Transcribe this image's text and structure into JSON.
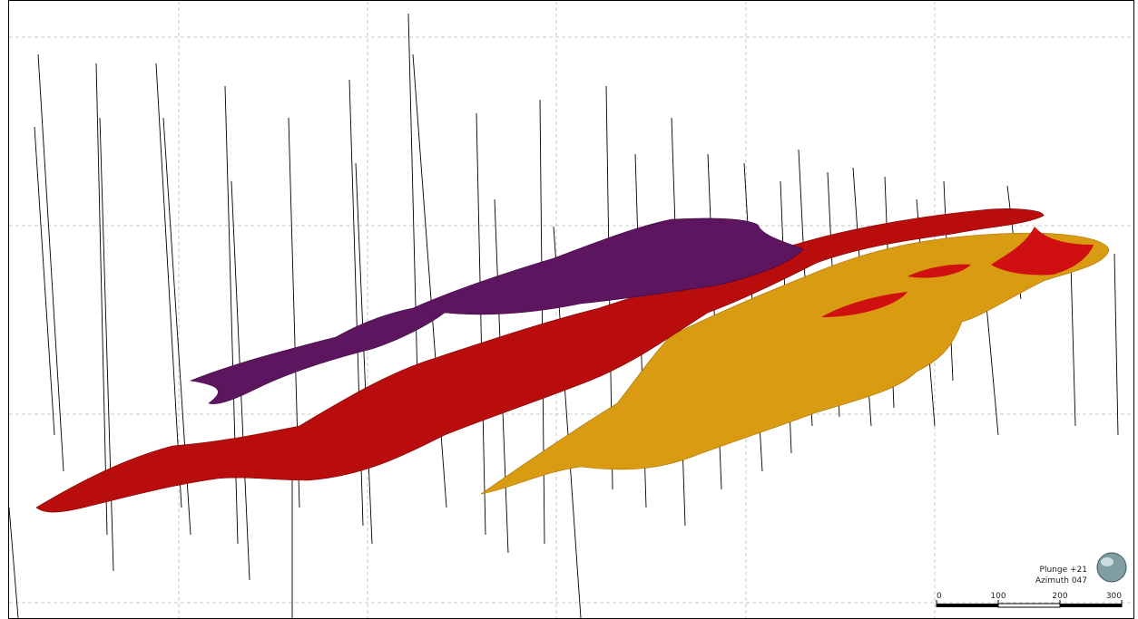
{
  "view": {
    "plunge": "Plunge +21",
    "azimuth": "Azimuth 047"
  },
  "scale_bar": {
    "ticks": [
      0,
      100,
      200,
      300
    ]
  }
}
